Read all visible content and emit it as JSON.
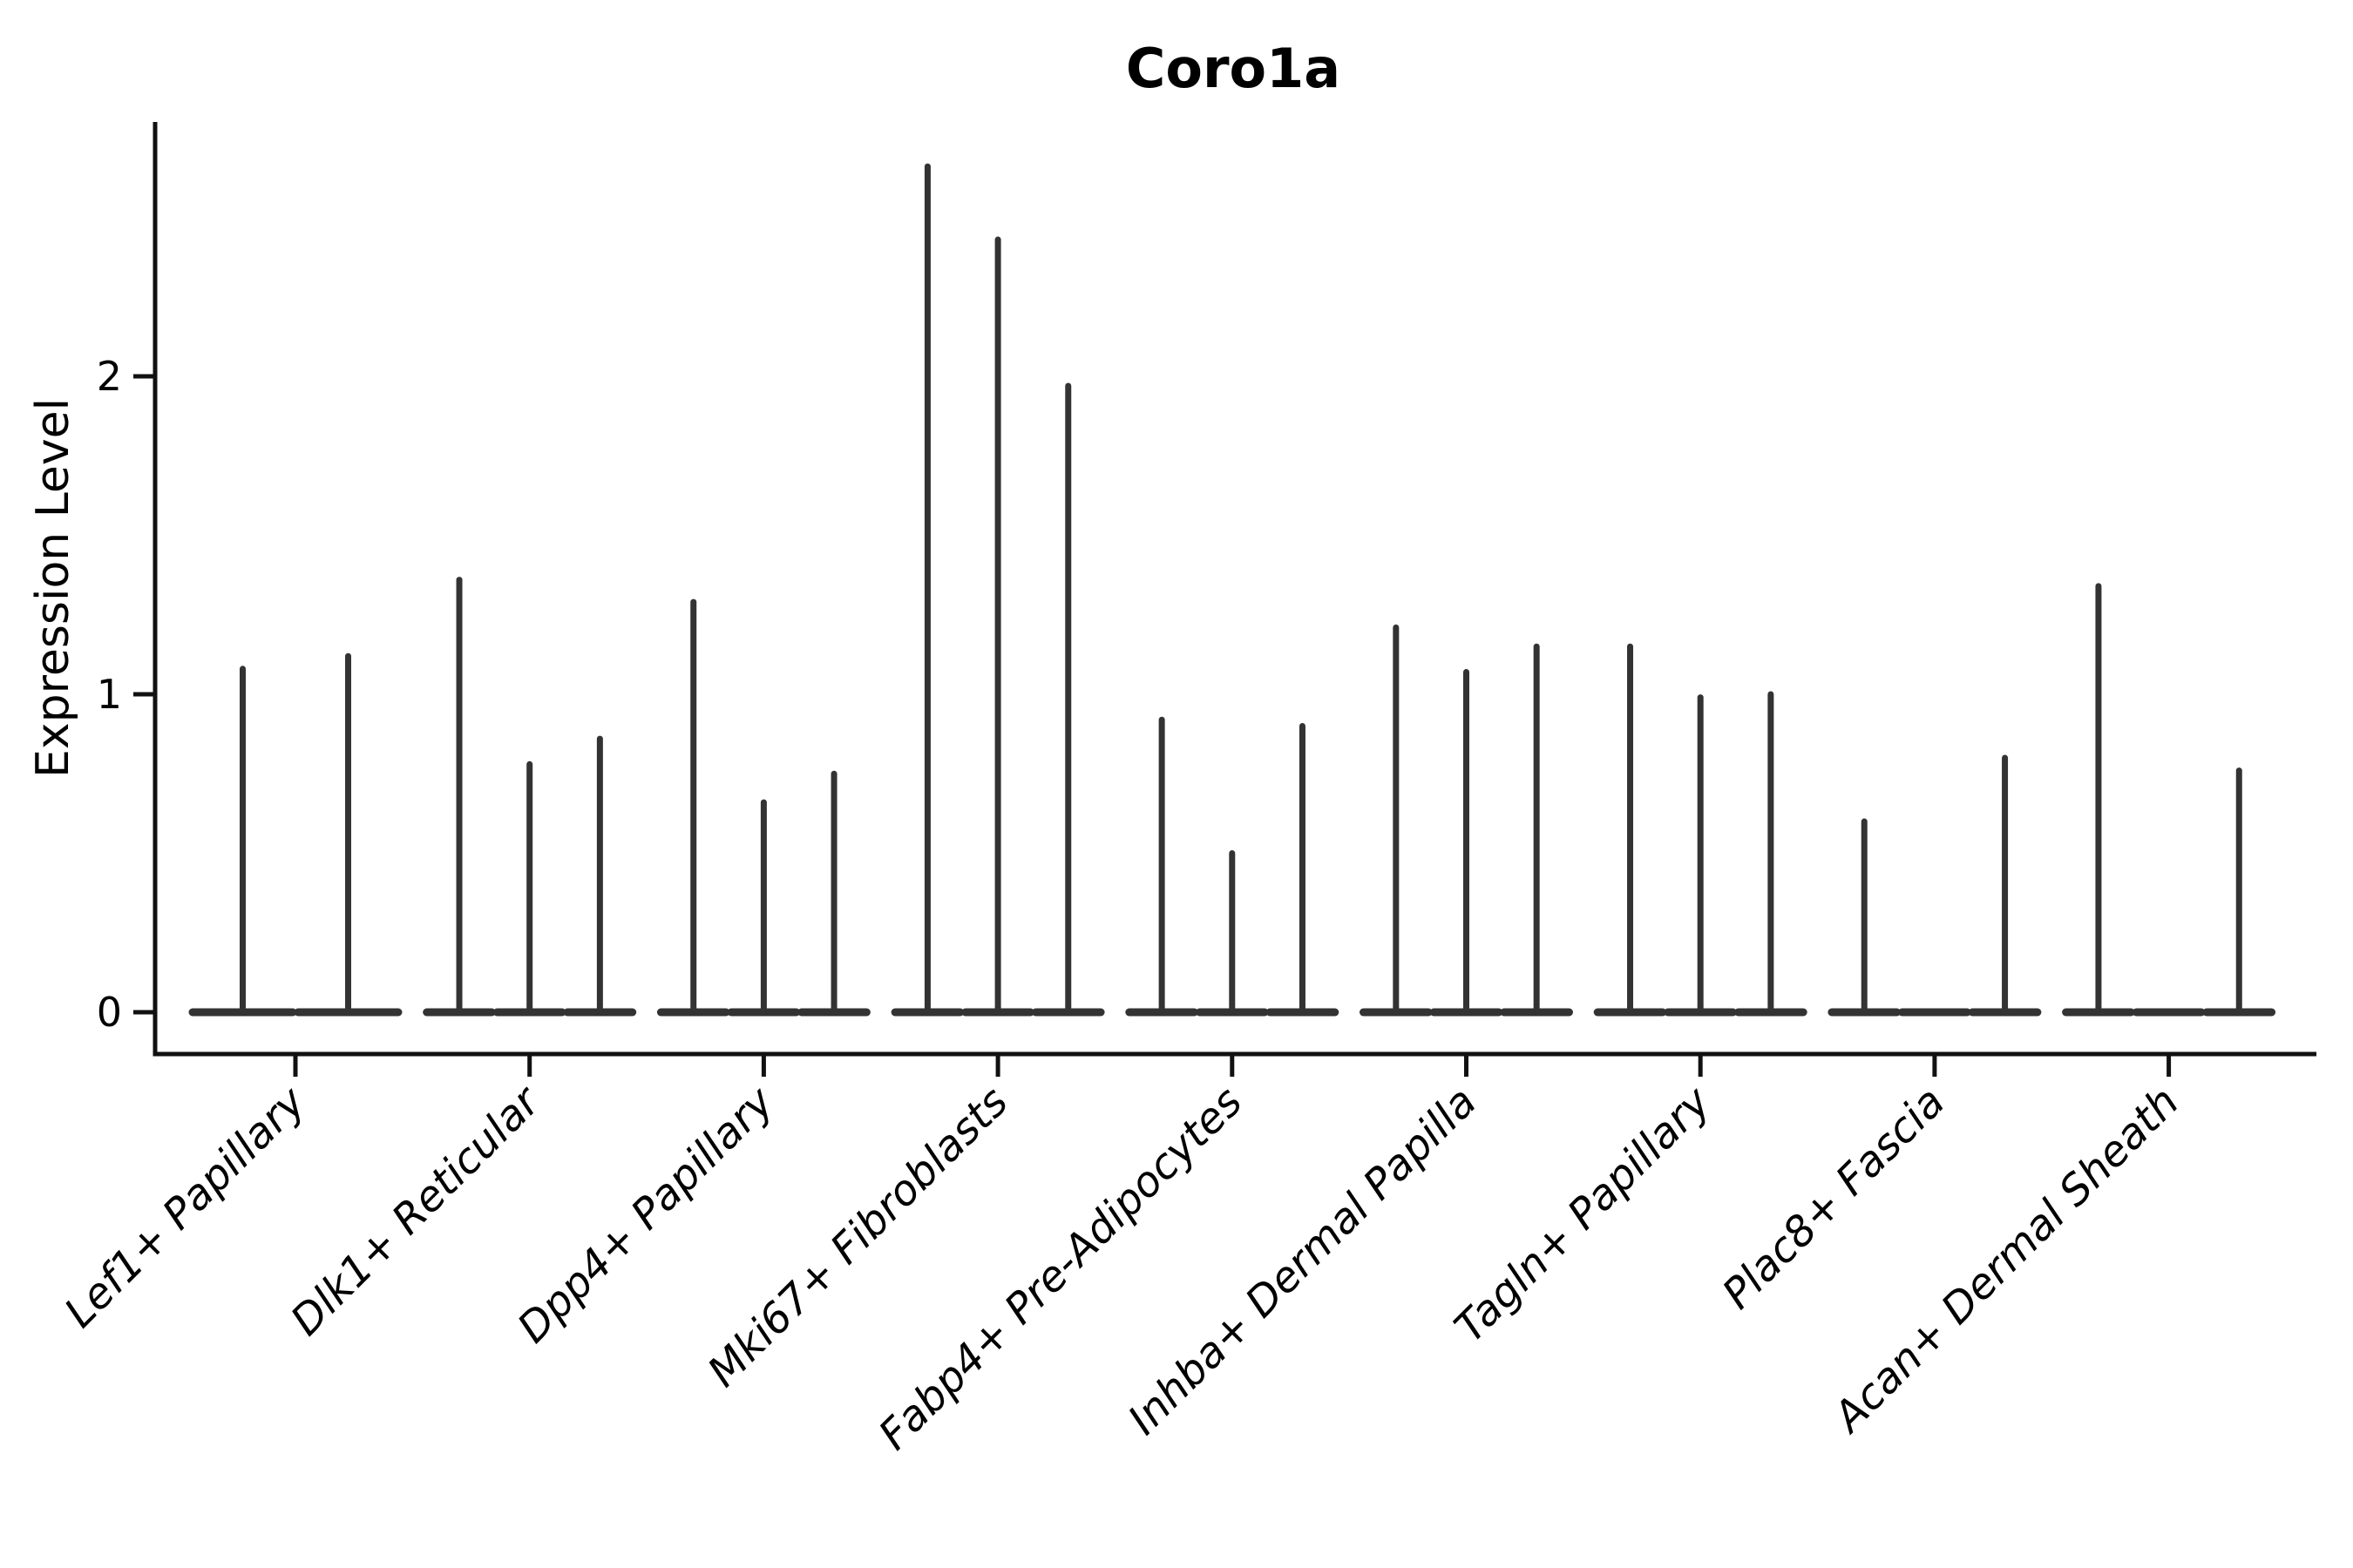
{
  "title": "Coro1a",
  "chart_data": {
    "type": "violin",
    "title": "Coro1a",
    "xlabel": "",
    "ylabel": "Expression Level",
    "ylim": [
      0,
      2.8
    ],
    "yticks": [
      0,
      1,
      2
    ],
    "grid": false,
    "legend": "none",
    "categories": [
      "Lef1+ Papillary",
      "Dlk1+ Reticular",
      "Dpp4+ Papillary",
      "Mki67+ Fibroblasts",
      "Fabp4+ Pre-Adipocytes",
      "Inhba+ Dermal Papilla",
      "Tagln+ Papillary",
      "Plac8+ Fascia",
      "Acan+ Dermal Sheath"
    ],
    "series": [
      {
        "category": "Lef1+ Papillary",
        "violin_max_values": [
          1.08,
          1.12
        ]
      },
      {
        "category": "Dlk1+ Reticular",
        "violin_max_values": [
          1.36,
          0.78,
          0.86
        ]
      },
      {
        "category": "Dpp4+ Papillary",
        "violin_max_values": [
          1.29,
          0.66,
          0.75
        ]
      },
      {
        "category": "Mki67+ Fibroblasts",
        "violin_max_values": [
          2.66,
          2.43,
          1.97
        ]
      },
      {
        "category": "Fabp4+ Pre-Adipocytes",
        "violin_max_values": [
          0.92,
          0.5,
          0.9
        ]
      },
      {
        "category": "Inhba+ Dermal Papilla",
        "violin_max_values": [
          1.21,
          1.07,
          1.15
        ]
      },
      {
        "category": "Tagln+ Papillary",
        "violin_max_values": [
          1.15,
          0.99,
          1.0
        ]
      },
      {
        "category": "Plac8+ Fascia",
        "violin_max_values": [
          0.6,
          0.0,
          0.8
        ]
      },
      {
        "category": "Acan+ Dermal Sheath",
        "violin_max_values": [
          1.34,
          0.0,
          0.76
        ]
      }
    ],
    "style": {
      "line_color": "#333333",
      "axis_color": "#111111",
      "text_color": "#000000",
      "background": "#ffffff"
    },
    "notes": "Each category shows thin collapsed violins; value is the top of each spike at the y-axis scale. 0 means a flat violin (baseline only)."
  }
}
